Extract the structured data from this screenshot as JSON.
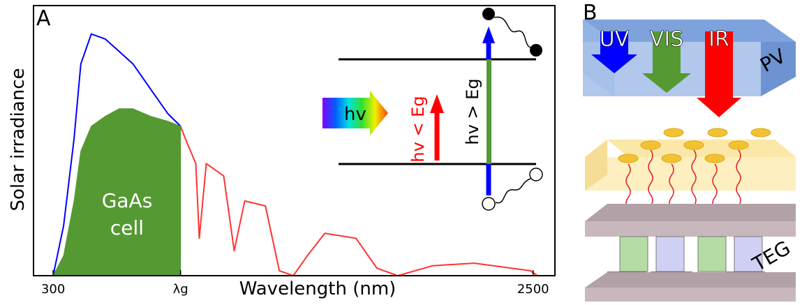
{
  "chart_data": {
    "type": "line",
    "panel_label": "A",
    "xlabel": "Wavelength (nm)",
    "ylabel": "Solar irradiance",
    "xlim": [
      210,
      2600
    ],
    "ylim": [
      0,
      1.0
    ],
    "xticks": [
      300,
      {
        "value": 884,
        "label": "λg"
      },
      2500
    ],
    "x": [
      300,
      348,
      396,
      427,
      475,
      539,
      603,
      666,
      746,
      826,
      884,
      906,
      954,
      970,
      1002,
      1082,
      1130,
      1178,
      1273,
      1337,
      1401,
      1465,
      1545,
      1688,
      1784,
      1880,
      2040,
      2231,
      2487,
      2520
    ],
    "series": [
      {
        "color": "#0000ff",
        "values": [
          0,
          0.2,
          0.55,
          0.85,
          0.97,
          0.95,
          0.9,
          0.85,
          0.75,
          0.65,
          0.6,
          null,
          null,
          null,
          null,
          null,
          null,
          null,
          null,
          null,
          null,
          null,
          null,
          null,
          null,
          null,
          null,
          null,
          null,
          null
        ]
      },
      {
        "color": "#ff3333",
        "values": [
          null,
          null,
          null,
          null,
          null,
          null,
          null,
          null,
          null,
          null,
          0.6,
          0.55,
          0.45,
          0.15,
          0.45,
          0.4,
          0.1,
          0.3,
          0.28,
          0.02,
          0,
          0.08,
          0.17,
          0.15,
          0.03,
          0,
          0.04,
          0.05,
          0.02,
          0
        ]
      },
      {
        "color": "#559933",
        "fill": true,
        "values": [
          0,
          0.08,
          0.3,
          0.5,
          0.6,
          0.64,
          0.67,
          0.67,
          0.64,
          0.62,
          0.6,
          null,
          null,
          null,
          null,
          null,
          null,
          null,
          null,
          null,
          null,
          null,
          null,
          null,
          null,
          null,
          null,
          null,
          null,
          null
        ]
      }
    ],
    "annotations": [
      "GaAs",
      "cell",
      "hv",
      "hv < Eg",
      "hv > Eg"
    ]
  },
  "panel_b": {
    "panel_label": "B",
    "labels": [
      "UV",
      "VIS",
      "IR",
      "PV",
      "TEG"
    ]
  }
}
